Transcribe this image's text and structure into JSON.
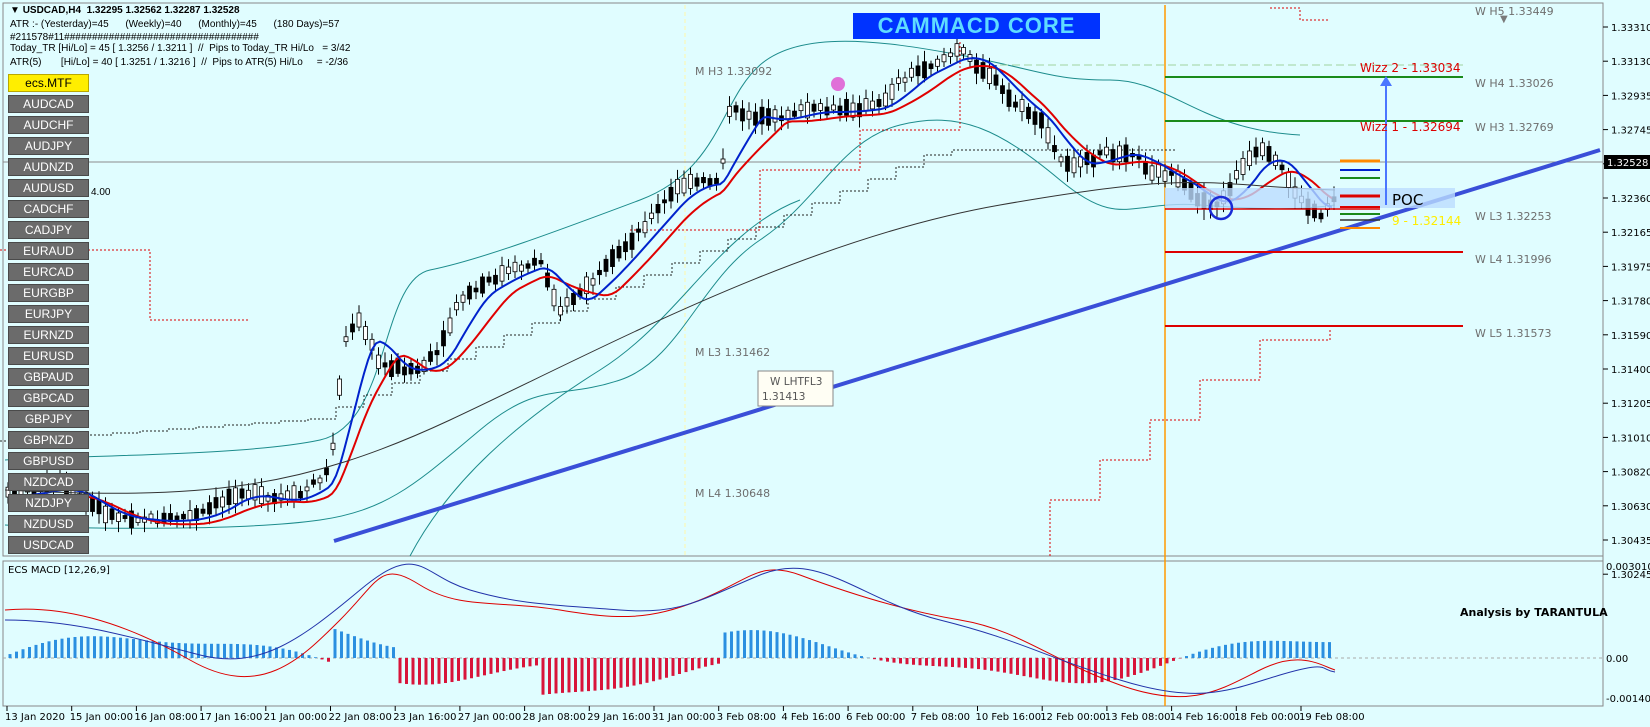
{
  "header": {
    "symbol_line": "USDCAD,H4  1.32295 1.32562 1.32287 1.32528",
    "atr_line": "ATR :- (Yesterday)=45      (Weekly)=40      (Monthly)=45      (180 Days)=57",
    "sep_line": "#211578#11###################################",
    "today_line": "Today_TR [Hi/Lo] = 45 [ 1.3256 / 1.3211 ]  //  Pips to Today_TR Hi/Lo   = 3/42",
    "atr5_line": "ATR(5)       [Hi/Lo] = 40 [ 1.3251 / 1.3216 ]  //  Pips to ATR(5) Hi/Lo     = -2/36",
    "small_value": "4.00"
  },
  "banner": "CAMMACD CORE",
  "sidebar": {
    "active": "ecs.MTF",
    "items": [
      "AUDCAD",
      "AUDCHF",
      "AUDJPY",
      "AUDNZD",
      "AUDUSD",
      "CADCHF",
      "CADJPY",
      "EURAUD",
      "EURCAD",
      "EURGBP",
      "EURJPY",
      "EURNZD",
      "EURUSD",
      "GBPAUD",
      "GBPCAD",
      "GBPJPY",
      "GBPNZD",
      "GBPUSD",
      "NZDCAD",
      "NZDJPY",
      "NZDUSD",
      "USDCAD"
    ]
  },
  "price_axis": [
    "1.33310",
    "1.33130",
    "1.32935",
    "1.32745",
    "1.32528",
    "1.32360",
    "1.32165",
    "1.31975",
    "1.31780",
    "1.31590",
    "1.31400",
    "1.31205",
    "1.31010",
    "1.30820",
    "1.30630",
    "1.30435",
    "1.30245"
  ],
  "current_price": "1.32528",
  "levels": {
    "w_h5": "W  H5 1.33449",
    "w_h4": "W  H4 1.33026",
    "w_h3": "W  H3 1.32769",
    "w_l3": "W  L3 1.32253",
    "w_l4": "W  L4 1.31996",
    "w_l5": "W  L5 1.31573",
    "m_h3": "M  H3 1.33092",
    "m_l3": "M  L3 1.31462",
    "m_l4": "M  L4 1.30648",
    "wizz2": "Wizz 2 - 1.33034",
    "wizz1": "Wizz 1 - 1.32694",
    "wizz_low": "9 - 1.32144",
    "poc": "POC",
    "lhtfl3_label": "W  LHTFL3",
    "lhtfl3_value": "1.31413"
  },
  "macd": {
    "title": "ECS MACD [12,26,9]",
    "axis": [
      "0.0030106",
      "0.00",
      "-0.001404"
    ],
    "credit": "Analysis by TARANTULA"
  },
  "time_axis": [
    "13 Jan 2020",
    "15 Jan 00:00",
    "16 Jan 08:00",
    "17 Jan 16:00",
    "21 Jan 00:00",
    "22 Jan 08:00",
    "23 Jan 16:00",
    "27 Jan 00:00",
    "28 Jan 08:00",
    "29 Jan 16:00",
    "31 Jan 00:00",
    "3 Feb 08:00",
    "4 Feb 16:00",
    "6 Feb 00:00",
    "7 Feb 08:00",
    "10 Feb 16:00",
    "12 Feb 00:00",
    "13 Feb 08:00",
    "14 Feb 16:00",
    "18 Feb 00:00",
    "19 Feb 08:00"
  ],
  "colors": {
    "background": "#e0fdff",
    "bull": "#ffffff",
    "bear": "#000000",
    "ema_fast": "#0022cc",
    "ema_slow": "#e00000",
    "trendline": "#3a4fd8",
    "bollinger": "#1c8c8c",
    "vline": "#ff9900",
    "macd_pos": "#2b8fe0",
    "macd_neg": "#d8143a"
  }
}
